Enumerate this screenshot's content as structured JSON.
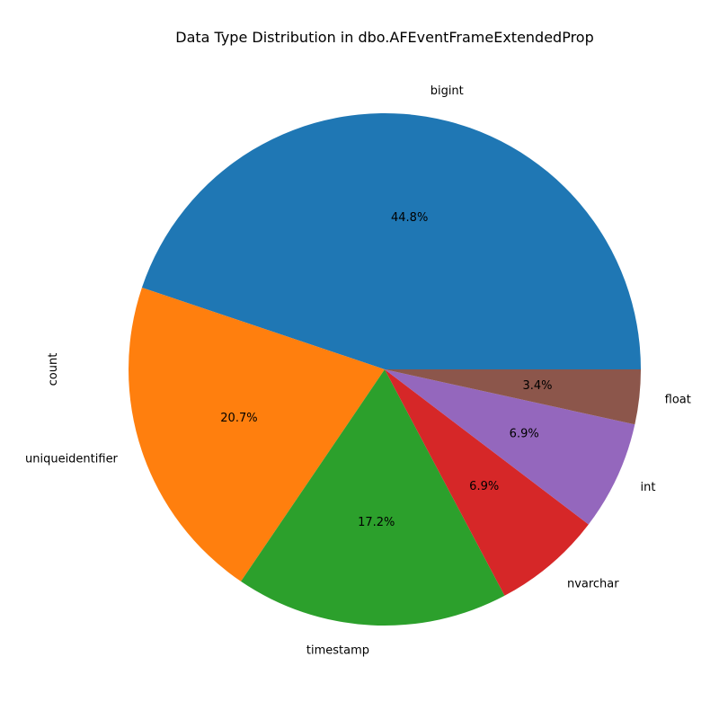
{
  "chart_data": {
    "type": "pie",
    "title": "Data Type Distribution in dbo.AFEventFrameExtendedProp",
    "ylabel": "count",
    "start_angle_deg": 0,
    "direction": "counterclockwise",
    "slices": [
      {
        "label": "bigint",
        "value": 13,
        "percent_label": "44.8%",
        "color": "#1f77b4"
      },
      {
        "label": "uniqueidentifier",
        "value": 6,
        "percent_label": "20.7%",
        "color": "#ff7f0e"
      },
      {
        "label": "timestamp",
        "value": 5,
        "percent_label": "17.2%",
        "color": "#2ca02c"
      },
      {
        "label": "nvarchar",
        "value": 2,
        "percent_label": "6.9%",
        "color": "#d62728"
      },
      {
        "label": "int",
        "value": 2,
        "percent_label": "6.9%",
        "color": "#9467bd"
      },
      {
        "label": "float",
        "value": 1,
        "percent_label": "3.4%",
        "color": "#8c564b"
      }
    ]
  }
}
